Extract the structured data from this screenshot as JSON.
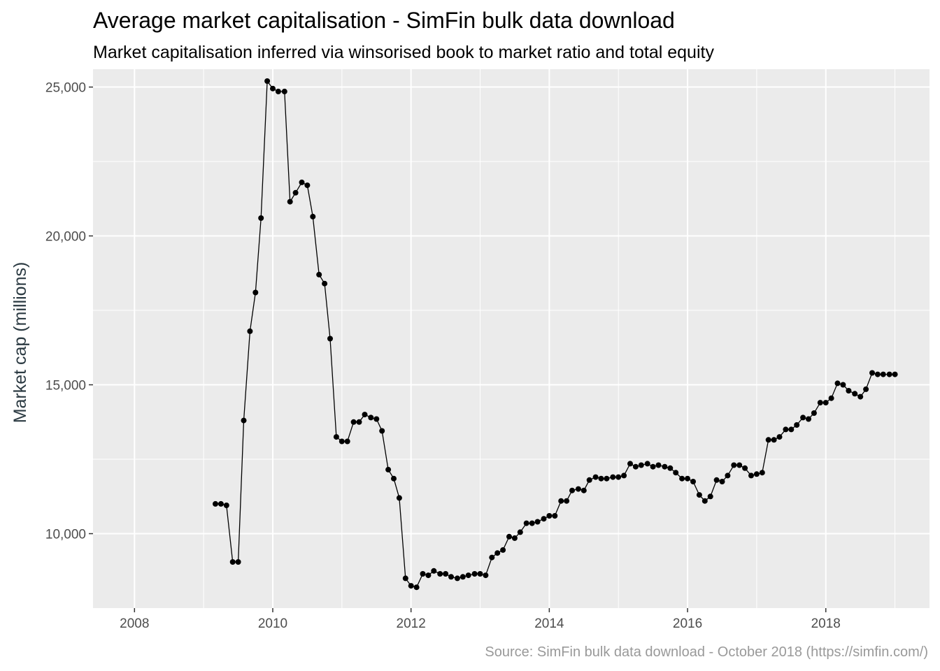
{
  "chart_data": {
    "type": "line",
    "title": "Average market capitalisation - SimFin bulk data download",
    "subtitle": "Market capitalisation inferred via winsorised book to market ratio and total equity",
    "xlabel": "",
    "ylabel": "Market cap (millions)",
    "caption": "Source: SimFin bulk data download - October 2018 (https://simfin.com/)",
    "xlim": [
      2007.4,
      2019.5
    ],
    "ylim": [
      7500,
      25600
    ],
    "x_ticks": [
      2008,
      2010,
      2012,
      2014,
      2016,
      2018
    ],
    "x_tick_labels": [
      "2008",
      "2010",
      "2012",
      "2014",
      "2016",
      "2018"
    ],
    "y_ticks": [
      10000,
      15000,
      20000,
      25000
    ],
    "y_tick_labels": [
      "10,000",
      "15,000",
      "20,000",
      "25,000"
    ],
    "grid": true,
    "markers": true,
    "colors": {
      "panel": "#ebebeb",
      "grid": "#ffffff",
      "line": "#000000",
      "points": "#000000"
    },
    "series": [
      {
        "x": [
          2009.17,
          2009.25,
          2009.33,
          2009.42,
          2009.5,
          2009.58,
          2009.67,
          2009.75,
          2009.83,
          2009.92,
          2010.0,
          2010.08,
          2010.17,
          2010.25,
          2010.33,
          2010.42,
          2010.5,
          2010.58,
          2010.67,
          2010.75,
          2010.83,
          2010.92,
          2011.0,
          2011.08,
          2011.17,
          2011.25,
          2011.33,
          2011.42,
          2011.5,
          2011.58,
          2011.67,
          2011.75,
          2011.83,
          2011.92,
          2012.0,
          2012.08,
          2012.17,
          2012.25,
          2012.33,
          2012.42,
          2012.5,
          2012.58,
          2012.67,
          2012.75,
          2012.83,
          2012.92,
          2013.0,
          2013.08,
          2013.17,
          2013.25,
          2013.33,
          2013.42,
          2013.5,
          2013.58,
          2013.67,
          2013.75,
          2013.83,
          2013.92,
          2014.0,
          2014.08,
          2014.17,
          2014.25,
          2014.33,
          2014.42,
          2014.5,
          2014.58,
          2014.67,
          2014.75,
          2014.83,
          2014.92,
          2015.0,
          2015.08,
          2015.17,
          2015.25,
          2015.33,
          2015.42,
          2015.5,
          2015.58,
          2015.67,
          2015.75,
          2015.83,
          2015.92,
          2016.0,
          2016.08,
          2016.17,
          2016.25,
          2016.33,
          2016.42,
          2016.5,
          2016.58,
          2016.67,
          2016.75,
          2016.83,
          2016.92,
          2017.0,
          2017.08,
          2017.17,
          2017.25,
          2017.33,
          2017.42,
          2017.5,
          2017.58,
          2017.67,
          2017.75,
          2017.83,
          2017.92,
          2018.0,
          2018.08,
          2018.17,
          2018.25,
          2018.33,
          2018.42,
          2018.5,
          2018.58,
          2018.67,
          2018.75,
          2018.83,
          2018.92,
          2019.0
        ],
        "values": [
          11000,
          11000,
          10950,
          9050,
          9050,
          13800,
          16800,
          18100,
          20600,
          25200,
          24950,
          24850,
          24850,
          21150,
          21450,
          21800,
          21700,
          20650,
          18700,
          18400,
          16550,
          13250,
          13100,
          13100,
          13750,
          13750,
          14000,
          13900,
          13850,
          13450,
          12150,
          11850,
          11200,
          8500,
          8250,
          8200,
          8650,
          8600,
          8750,
          8650,
          8650,
          8550,
          8500,
          8550,
          8600,
          8650,
          8650,
          8600,
          9200,
          9350,
          9450,
          9900,
          9850,
          10050,
          10350,
          10350,
          10400,
          10500,
          10600,
          10600,
          11100,
          11100,
          11450,
          11500,
          11450,
          11800,
          11900,
          11850,
          11850,
          11900,
          11900,
          11950,
          12350,
          12250,
          12300,
          12350,
          12250,
          12300,
          12250,
          12200,
          12050,
          11850,
          11850,
          11750,
          11300,
          11100,
          11250,
          11800,
          11750,
          11950,
          12300,
          12300,
          12200,
          11950,
          12000,
          12050,
          13150,
          13150,
          13250,
          13500,
          13500,
          13650,
          13900,
          13850,
          14050,
          14400,
          14400,
          14550,
          15050,
          15000,
          14800,
          14700,
          14600,
          14850,
          15400,
          15350,
          15350,
          15350,
          15350
        ]
      }
    ]
  }
}
